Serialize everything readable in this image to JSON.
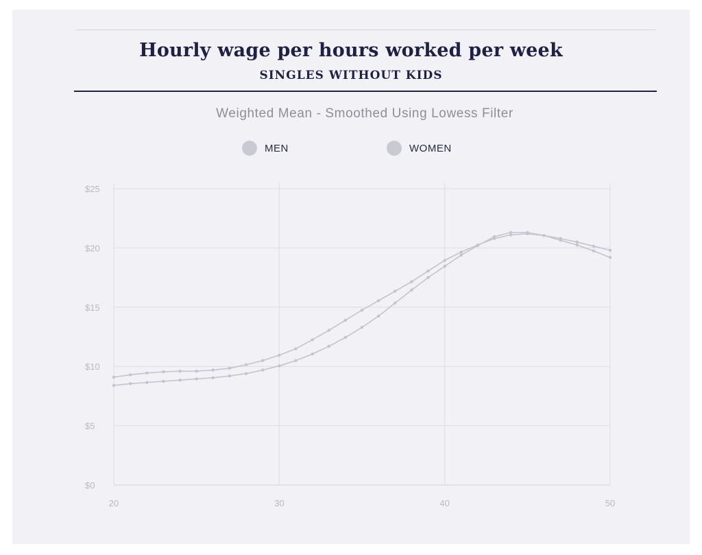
{
  "header": {
    "title": "Hourly wage per hours worked per week",
    "subtitle": "SINGLES WITHOUT KIDS"
  },
  "chart_data": {
    "type": "line",
    "subtitle": "Weighted Mean - Smoothed Using Lowess Filter",
    "xlabel": "",
    "ylabel": "",
    "xlim": [
      20,
      50
    ],
    "ylim": [
      0,
      25
    ],
    "x_ticks": [
      "20",
      "30",
      "40",
      "50"
    ],
    "y_ticks": [
      "$0",
      "$5",
      "$10",
      "$15",
      "$20",
      "$25"
    ],
    "grid": true,
    "legend_position": "top-center",
    "x": [
      20,
      21,
      22,
      23,
      24,
      25,
      26,
      27,
      28,
      29,
      30,
      31,
      32,
      33,
      34,
      35,
      36,
      37,
      38,
      39,
      40,
      41,
      42,
      43,
      44,
      45,
      46,
      47,
      48,
      49,
      50
    ],
    "series": [
      {
        "name": "MEN",
        "color": "#c4c3cf",
        "values": [
          9.1,
          9.3,
          9.45,
          9.55,
          9.6,
          9.6,
          9.7,
          9.85,
          10.15,
          10.5,
          10.95,
          11.5,
          12.25,
          13.05,
          13.9,
          14.75,
          15.55,
          16.35,
          17.15,
          18.05,
          18.95,
          19.65,
          20.25,
          20.8,
          21.1,
          21.2,
          21.05,
          20.8,
          20.5,
          20.15,
          19.8
        ]
      },
      {
        "name": "WOMEN",
        "color": "#c4c3cf",
        "values": [
          8.4,
          8.55,
          8.65,
          8.75,
          8.85,
          8.95,
          9.05,
          9.2,
          9.4,
          9.7,
          10.05,
          10.5,
          11.05,
          11.7,
          12.45,
          13.3,
          14.25,
          15.35,
          16.45,
          17.5,
          18.45,
          19.4,
          20.2,
          20.95,
          21.3,
          21.3,
          21.05,
          20.65,
          20.25,
          19.75,
          19.2
        ]
      }
    ]
  }
}
